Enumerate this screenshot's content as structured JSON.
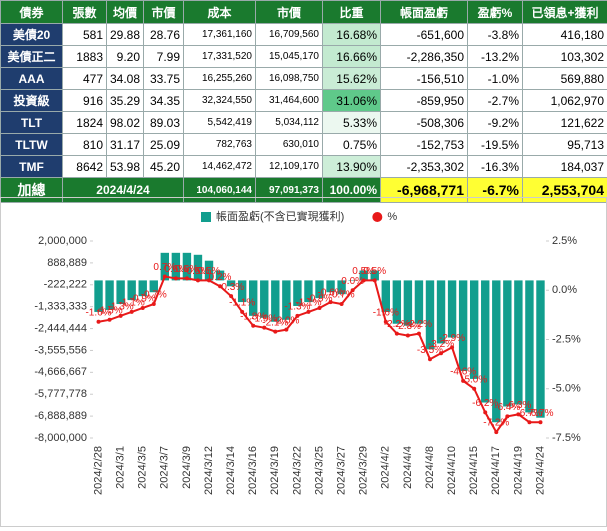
{
  "table": {
    "header": [
      "債券",
      "張數",
      "均價",
      "市價",
      "成本",
      "市價",
      "比重",
      "帳面盈虧",
      "盈虧%",
      "已領息+獲利"
    ],
    "rows": [
      [
        "美債20",
        "581",
        "29.88",
        "28.76",
        "17,361,160",
        "16,709,560",
        "16.68%",
        "-651,600",
        "-3.8%",
        "416,180"
      ],
      [
        "美債正二",
        "1883",
        "9.20",
        "7.99",
        "17,331,520",
        "15,045,170",
        "16.66%",
        "-2,286,350",
        "-13.2%",
        "103,302"
      ],
      [
        "AAA",
        "477",
        "34.08",
        "33.75",
        "16,255,260",
        "16,098,750",
        "15.62%",
        "-156,510",
        "-1.0%",
        "569,880"
      ],
      [
        "投資級",
        "916",
        "35.29",
        "34.35",
        "32,324,550",
        "31,464,600",
        "31.06%",
        "-859,950",
        "-2.7%",
        "1,062,970"
      ],
      [
        "TLT",
        "1824",
        "98.02",
        "89.03",
        "5,542,419",
        "5,034,112",
        "5.33%",
        "-508,306",
        "-9.2%",
        "121,622"
      ],
      [
        "TLTW",
        "810",
        "31.17",
        "25.09",
        "782,763",
        "630,010",
        "0.75%",
        "-152,753",
        "-19.5%",
        "95,713"
      ],
      [
        "TMF",
        "8642",
        "53.98",
        "45.20",
        "14,462,472",
        "12,109,170",
        "13.90%",
        "-2,353,302",
        "-16.3%",
        "184,037"
      ]
    ],
    "total": [
      "加總",
      "2024/4/24",
      "104,060,144",
      "97,091,373",
      "100.00%",
      "-6,968,771",
      "-6.7%",
      "2,553,704"
    ]
  },
  "chart_data": {
    "type": "bar_line",
    "categories": [
      "2024/2/28",
      null,
      "2024/3/1",
      null,
      "2024/3/5",
      null,
      "2024/3/7",
      null,
      "2024/3/9",
      null,
      "2024/3/12",
      null,
      "2024/3/14",
      null,
      "2024/3/16",
      null,
      "2024/3/19",
      null,
      "2024/3/22",
      null,
      "2024/3/25",
      null,
      "2024/3/27",
      null,
      "2024/3/29",
      null,
      "2024/4/2",
      null,
      "2024/4/4",
      null,
      "2024/4/8",
      null,
      "2024/4/10",
      null,
      "2024/4/15",
      null,
      "2024/4/17",
      null,
      "2024/4/19",
      null,
      "2024/4/24"
    ],
    "series": [
      {
        "name": "帳面盈虧(不含已實現獲利)",
        "type": "bar",
        "color": "#119e8e",
        "values": [
          -1600000,
          -1500000,
          -1200000,
          -1000000,
          -800000,
          -600000,
          1400000,
          1400000,
          1400000,
          1300000,
          1000000,
          500000,
          -300000,
          -1100000,
          -1800000,
          -1900000,
          -2100000,
          -2000000,
          -1300000,
          -1100000,
          -900000,
          -600000,
          -700000,
          0,
          500000,
          500000,
          -1600000,
          -2200000,
          -2300000,
          -2200000,
          -3500000,
          -3200000,
          -2900000,
          -4600000,
          -5000000,
          -6200000,
          -7200000,
          -6400000,
          -6300000,
          -6700000,
          -6968771
        ]
      },
      {
        "name": "%",
        "type": "line",
        "axis": "y2",
        "color": "#e81919",
        "values": [
          -1.6,
          -1.5,
          -1.3,
          -1.1,
          -0.9,
          -0.7,
          0.7,
          0.6,
          0.6,
          0.5,
          0.5,
          0.2,
          -0.3,
          -1.1,
          -1.8,
          -1.9,
          -2.1,
          -2.0,
          -1.3,
          -1.1,
          -0.9,
          -0.6,
          -0.7,
          0,
          0.5,
          0.5,
          -1.6,
          -2.2,
          -2.3,
          -2.2,
          -3.5,
          -3.2,
          -2.9,
          -4.6,
          -5.0,
          -6.2,
          -7.2,
          -6.4,
          -6.3,
          -6.7,
          -6.7
        ],
        "value_labels": [
          "-1.6%",
          "-1.5%",
          "-1.3%",
          "-1.1%",
          "-0.9%",
          "-0.7%",
          "0.7%",
          "0.6%",
          "0.6%",
          "0.5%",
          "0.5%",
          "0.2%",
          "-0.3%",
          "-1.1%",
          "-1.8%",
          "-1.9%",
          "-2.1%",
          "-2.0%",
          "-1.3%",
          "-1.1%",
          "-0.9%",
          "-0.6%",
          "-0.7%",
          "0.0%",
          "0.5%",
          "0.5%",
          "-1.6%",
          "-2.2%",
          "-2.3%",
          "-2.2%",
          "-3.5%",
          "-3.2%",
          "-2.9%",
          "-4.6%",
          "-5.0%",
          "-6.2%",
          "-7.2%",
          "-6.4%",
          "-6.3%",
          "-6.7%",
          "-6.7%"
        ]
      }
    ],
    "ylim": [
      -8000000,
      2000000
    ],
    "yticks": [
      {
        "value": 2000000,
        "label": "2,000,000"
      },
      {
        "value": 888889,
        "label": "888,889"
      },
      {
        "value": -222222,
        "label": "-222,222"
      },
      {
        "value": -1333333,
        "label": "-1,333,333"
      },
      {
        "value": -2444444,
        "label": "-2,444,444"
      },
      {
        "value": -3555556,
        "label": "-3,555,556"
      },
      {
        "value": -4666667,
        "label": "-4,666,667"
      },
      {
        "value": -5777778,
        "label": "-5,777,778"
      },
      {
        "value": -6888889,
        "label": "-6,888,889"
      },
      {
        "value": -8000000,
        "label": "-8,000,000"
      }
    ],
    "y2lim": [
      -7.5,
      2.5
    ],
    "y2ticks": [
      {
        "value": 2.5,
        "label": "2.5%"
      },
      {
        "value": 0,
        "label": "0.0%"
      },
      {
        "value": -2.5,
        "label": "-2.5%"
      },
      {
        "value": -5,
        "label": "-5.0%"
      },
      {
        "value": -7.5,
        "label": "-7.5%"
      }
    ],
    "legend": "top",
    "grid": false
  }
}
